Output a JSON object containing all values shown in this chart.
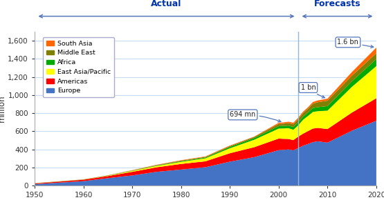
{
  "years": [
    1950,
    1960,
    1965,
    1970,
    1975,
    1980,
    1985,
    1990,
    1995,
    2000,
    2001,
    2002,
    2003,
    2004,
    2005,
    2006,
    2007,
    2008,
    2010,
    2015,
    2020
  ],
  "europe": [
    17,
    50,
    83,
    113,
    153,
    178,
    204,
    265,
    315,
    392,
    395,
    400,
    390,
    416,
    441,
    460,
    480,
    490,
    475,
    607,
    717
  ],
  "americas": [
    7,
    16,
    23,
    40,
    50,
    62,
    65,
    93,
    110,
    128,
    122,
    116,
    113,
    125,
    133,
    142,
    150,
    148,
    150,
    200,
    248
  ],
  "east_asia": [
    1,
    1,
    3,
    9,
    15,
    23,
    33,
    55,
    82,
    110,
    115,
    119,
    114,
    125,
    154,
    167,
    184,
    184,
    203,
    284,
    355
  ],
  "africa": [
    1,
    1,
    2,
    3,
    5,
    7,
    9,
    15,
    19,
    27,
    28,
    28,
    30,
    33,
    35,
    38,
    43,
    44,
    50,
    62,
    77
  ],
  "middle_east": [
    1,
    1,
    2,
    3,
    4,
    6,
    7,
    9,
    12,
    24,
    24,
    28,
    30,
    36,
    38,
    41,
    47,
    55,
    60,
    61,
    65
  ],
  "south_asia": [
    1,
    1,
    2,
    3,
    4,
    5,
    5,
    6,
    4,
    13,
    14,
    15,
    17,
    15,
    16,
    17,
    19,
    20,
    22,
    40,
    62
  ],
  "forecast_start_year": 2004,
  "colors": {
    "europe": "#4472C4",
    "americas": "#FF0000",
    "east_asia": "#FFFF00",
    "africa": "#00AA00",
    "middle_east": "#808000",
    "south_asia": "#FF6600"
  },
  "ylabel": "million",
  "ylim": [
    0,
    1700
  ],
  "yticks": [
    0,
    200,
    400,
    600,
    800,
    1000,
    1200,
    1400,
    1600
  ],
  "xlim": [
    1950,
    2020
  ],
  "xticks": [
    1950,
    1960,
    1970,
    1980,
    1990,
    2000,
    2010,
    2020
  ],
  "grid_color": "#C5DCF0",
  "bg_color": "#FFFFFF",
  "actual_label": "Actual",
  "forecast_label": "Forecasts",
  "arrow_color": "#4472C4",
  "text_color": "#0033AA",
  "legend_labels": [
    "South Asia",
    "Middle East",
    "Africa",
    "East Asia/Pacific",
    "Americas",
    "Europe"
  ],
  "legend_colors_order": [
    "south_asia",
    "middle_east",
    "africa",
    "east_asia",
    "americas",
    "europe"
  ]
}
